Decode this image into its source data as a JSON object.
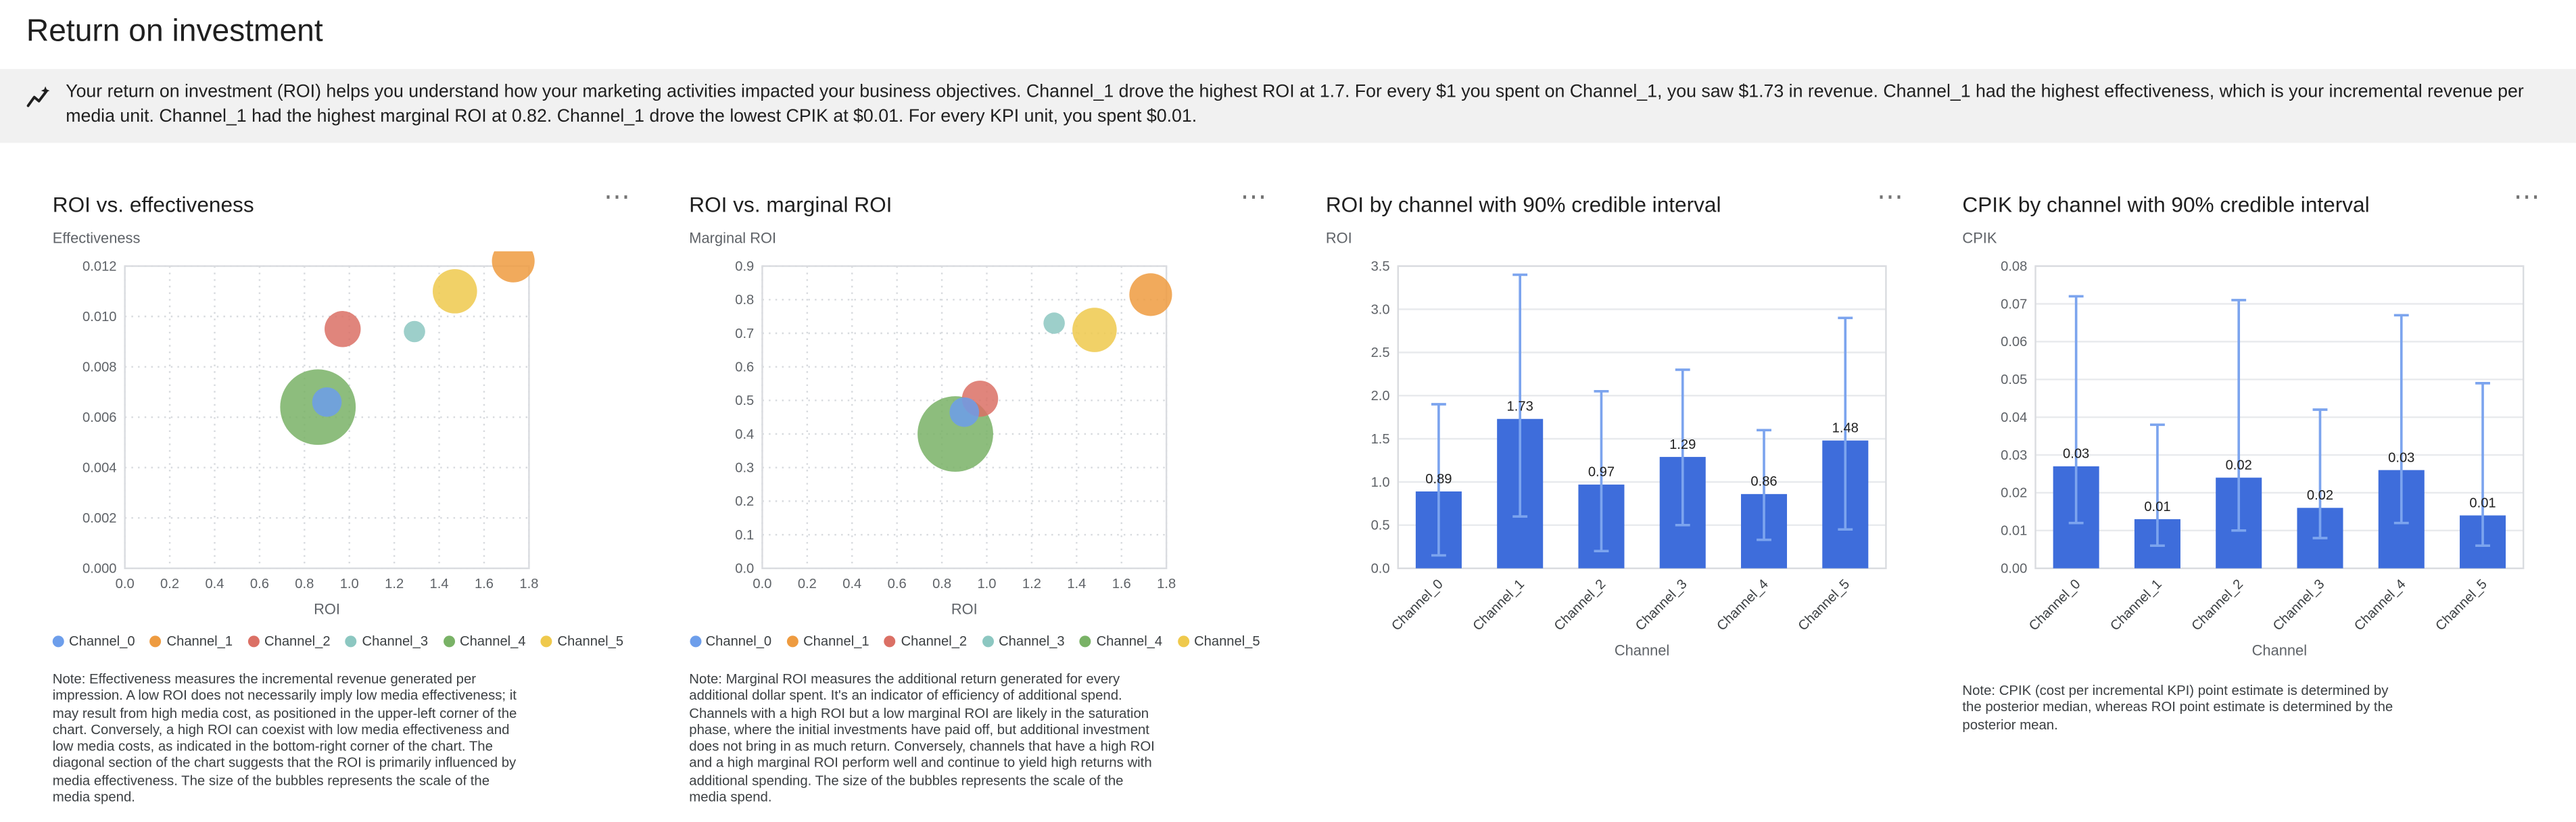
{
  "page": {
    "title": "Return on investment"
  },
  "icons": {
    "insights": "insights-icon",
    "more_options": "⋯"
  },
  "insights": {
    "text": "Your return on investment (ROI) helps you understand how your marketing activities impacted your business objectives. Channel_1 drove the highest ROI at 1.7. For every $1 you spent on Channel_1, you saw $1.73 in revenue. Channel_1 had the highest effectiveness, which is your incremental revenue per media unit. Channel_1 had the highest marginal ROI at 0.82. Channel_1 drove the lowest CPIK at $0.01. For every KPI unit, you spent $0.01."
  },
  "channels": [
    "Channel_0",
    "Channel_1",
    "Channel_2",
    "Channel_3",
    "Channel_4",
    "Channel_5"
  ],
  "palette": {
    "Channel_0": "#6D9EEB",
    "Channel_1": "#EE9B40",
    "Channel_2": "#DB7065",
    "Channel_3": "#8CC7C1",
    "Channel_4": "#79B266",
    "Channel_5": "#EFC94C"
  },
  "chart_data": [
    {
      "id": "roi_vs_effectiveness",
      "type": "scatter",
      "title": "ROI vs. effectiveness",
      "xlabel": "ROI",
      "ylabel": "Effectiveness",
      "xlim": [
        0,
        1.8
      ],
      "ylim": [
        0,
        0.012
      ],
      "xticks": [
        [
          0,
          "0.0"
        ],
        [
          0.2,
          "0.2"
        ],
        [
          0.4,
          "0.4"
        ],
        [
          0.6,
          "0.6"
        ],
        [
          0.8,
          "0.8"
        ],
        [
          1.0,
          "1.0"
        ],
        [
          1.2,
          "1.2"
        ],
        [
          1.4,
          "1.4"
        ],
        [
          1.6,
          "1.6"
        ],
        [
          1.8,
          "1.8"
        ]
      ],
      "yticks": [
        [
          0,
          "0.000"
        ],
        [
          0.002,
          "0.002"
        ],
        [
          0.004,
          "0.004"
        ],
        [
          0.006,
          "0.006"
        ],
        [
          0.008,
          "0.008"
        ],
        [
          0.01,
          "0.010"
        ],
        [
          0.012,
          "0.012"
        ]
      ],
      "points": [
        {
          "channel": "Channel_0",
          "x": 0.9,
          "y": 0.0066,
          "r": 9
        },
        {
          "channel": "Channel_1",
          "x": 1.73,
          "y": 0.0122,
          "r": 13
        },
        {
          "channel": "Channel_2",
          "x": 0.97,
          "y": 0.0095,
          "r": 11
        },
        {
          "channel": "Channel_3",
          "x": 1.29,
          "y": 0.0094,
          "r": 6.5
        },
        {
          "channel": "Channel_4",
          "x": 0.86,
          "y": 0.0064,
          "r": 23
        },
        {
          "channel": "Channel_5",
          "x": 1.47,
          "y": 0.011,
          "r": 13.5
        }
      ],
      "legend": [
        "Channel_0",
        "Channel_1",
        "Channel_2",
        "Channel_3",
        "Channel_4",
        "Channel_5"
      ],
      "note": "Note: Effectiveness measures the incremental revenue generated per impression. A low ROI does not necessarily imply low media effectiveness; it may result from high media cost, as positioned in the upper-left corner of the chart. Conversely, a high ROI can coexist with low media effectiveness and low media costs, as indicated in the bottom-right corner of the chart. The diagonal section of the chart suggests that the ROI is primarily influenced by media effectiveness. The size of the bubbles represents the scale of the media spend."
    },
    {
      "id": "roi_vs_marginal_roi",
      "type": "scatter",
      "title": "ROI vs. marginal ROI",
      "xlabel": "ROI",
      "ylabel": "Marginal ROI",
      "xlim": [
        0,
        1.8
      ],
      "ylim": [
        0,
        0.9
      ],
      "xticks": [
        [
          0,
          "0.0"
        ],
        [
          0.2,
          "0.2"
        ],
        [
          0.4,
          "0.4"
        ],
        [
          0.6,
          "0.6"
        ],
        [
          0.8,
          "0.8"
        ],
        [
          1.0,
          "1.0"
        ],
        [
          1.2,
          "1.2"
        ],
        [
          1.4,
          "1.4"
        ],
        [
          1.6,
          "1.6"
        ],
        [
          1.8,
          "1.8"
        ]
      ],
      "yticks": [
        [
          0,
          "0.0"
        ],
        [
          0.1,
          "0.1"
        ],
        [
          0.2,
          "0.2"
        ],
        [
          0.3,
          "0.3"
        ],
        [
          0.4,
          "0.4"
        ],
        [
          0.5,
          "0.5"
        ],
        [
          0.6,
          "0.6"
        ],
        [
          0.7,
          "0.7"
        ],
        [
          0.8,
          "0.8"
        ],
        [
          0.9,
          "0.9"
        ]
      ],
      "points": [
        {
          "channel": "Channel_0",
          "x": 0.9,
          "y": 0.465,
          "r": 9
        },
        {
          "channel": "Channel_1",
          "x": 1.73,
          "y": 0.815,
          "r": 13
        },
        {
          "channel": "Channel_2",
          "x": 0.97,
          "y": 0.505,
          "r": 11
        },
        {
          "channel": "Channel_3",
          "x": 1.3,
          "y": 0.73,
          "r": 6.5
        },
        {
          "channel": "Channel_4",
          "x": 0.86,
          "y": 0.4,
          "r": 23
        },
        {
          "channel": "Channel_5",
          "x": 1.48,
          "y": 0.71,
          "r": 13.5
        }
      ],
      "legend": [
        "Channel_0",
        "Channel_1",
        "Channel_2",
        "Channel_3",
        "Channel_4",
        "Channel_5"
      ],
      "note": "Note: Marginal ROI measures the additional return generated for every additional dollar spent. It's an indicator of efficiency of additional spend. Channels with a high ROI but a low marginal ROI are likely in the saturation phase, where the initial investments have paid off, but additional investment does not bring in as much return. Conversely, channels that have a high ROI and a high marginal ROI perform well and continue to yield high returns with additional spending. The size of the bubbles represents the scale of the media spend."
    },
    {
      "id": "roi_by_channel",
      "type": "bar",
      "title": "ROI by channel with 90% credible interval",
      "xlabel": "Channel",
      "ylabel": "ROI",
      "ylim": [
        0,
        3.5
      ],
      "yticks": [
        [
          0,
          "0.0"
        ],
        [
          0.5,
          "0.5"
        ],
        [
          1.0,
          "1.0"
        ],
        [
          1.5,
          "1.5"
        ],
        [
          2.0,
          "2.0"
        ],
        [
          2.5,
          "2.5"
        ],
        [
          3.0,
          "3.0"
        ],
        [
          3.5,
          "3.5"
        ]
      ],
      "categories": [
        "Channel_0",
        "Channel_1",
        "Channel_2",
        "Channel_3",
        "Channel_4",
        "Channel_5"
      ],
      "values": [
        0.89,
        1.73,
        0.97,
        1.29,
        0.86,
        1.48
      ],
      "labels": [
        "0.89",
        "1.73",
        "0.97",
        "1.29",
        "0.86",
        "1.48"
      ],
      "ci_low": [
        0.15,
        0.6,
        0.2,
        0.5,
        0.33,
        0.45
      ],
      "ci_high": [
        1.9,
        3.4,
        2.05,
        2.3,
        1.6,
        2.9
      ],
      "bar_color": "#3E6DDB",
      "error_color": "#7CA4EE"
    },
    {
      "id": "cpik_by_channel",
      "type": "bar",
      "title": "CPIK by channel with 90% credible interval",
      "xlabel": "Channel",
      "ylabel": "CPIK",
      "ylim": [
        0,
        0.08
      ],
      "yticks": [
        [
          0,
          "0.00"
        ],
        [
          0.01,
          "0.01"
        ],
        [
          0.02,
          "0.02"
        ],
        [
          0.03,
          "0.03"
        ],
        [
          0.04,
          "0.04"
        ],
        [
          0.05,
          "0.05"
        ],
        [
          0.06,
          "0.06"
        ],
        [
          0.07,
          "0.07"
        ],
        [
          0.08,
          "0.08"
        ]
      ],
      "categories": [
        "Channel_0",
        "Channel_1",
        "Channel_2",
        "Channel_3",
        "Channel_4",
        "Channel_5"
      ],
      "values": [
        0.027,
        0.013,
        0.024,
        0.016,
        0.026,
        0.014
      ],
      "labels": [
        "0.03",
        "0.01",
        "0.02",
        "0.02",
        "0.03",
        "0.01"
      ],
      "ci_low": [
        0.012,
        0.006,
        0.01,
        0.008,
        0.012,
        0.006
      ],
      "ci_high": [
        0.072,
        0.038,
        0.071,
        0.042,
        0.067,
        0.049
      ],
      "bar_color": "#3E6DDB",
      "error_color": "#7CA4EE",
      "note": "Note: CPIK (cost per incremental KPI) point estimate is determined by the posterior median, whereas ROI point estimate is determined by the posterior mean."
    }
  ]
}
